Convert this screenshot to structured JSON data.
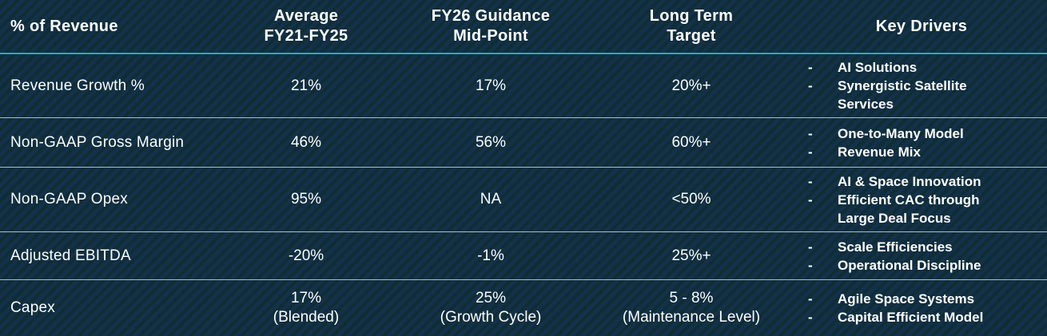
{
  "bullet": "-",
  "colors": {
    "background_stripe_blue": "#14304a",
    "background_stripe_teal": "#0e2e34",
    "header_rule": "#1fadc3",
    "row_rule": "#cdd3d4",
    "text": "#ffffff"
  },
  "header": {
    "col1": "% of Revenue",
    "col2": [
      "Average",
      "FY21-FY25"
    ],
    "col3": [
      "FY26 Guidance",
      "Mid-Point"
    ],
    "col4": [
      "Long Term",
      "Target"
    ],
    "col5": "Key Drivers"
  },
  "rows": [
    {
      "metric": "Revenue Growth %",
      "average": "21%",
      "fy26": "17%",
      "long_term": "20%+",
      "drivers": [
        "AI Solutions",
        "Synergistic Satellite Services"
      ]
    },
    {
      "metric": "Non-GAAP Gross Margin",
      "average": "46%",
      "fy26": "56%",
      "long_term": "60%+",
      "drivers": [
        "One-to-Many Model",
        "Revenue Mix"
      ]
    },
    {
      "metric": "Non-GAAP Opex",
      "average": "95%",
      "fy26": "NA",
      "long_term": "<50%",
      "drivers": [
        "AI & Space Innovation",
        "Efficient CAC through Large Deal Focus"
      ]
    },
    {
      "metric": "Adjusted EBITDA",
      "average": "-20%",
      "fy26": "-1%",
      "long_term": "25%+",
      "drivers": [
        "Scale Efficiencies",
        "Operational Discipline"
      ]
    },
    {
      "metric": "Capex",
      "average": "17%",
      "average_note": "(Blended)",
      "fy26": "25%",
      "fy26_note": "(Growth Cycle)",
      "long_term": "5 - 8%",
      "long_term_note": "(Maintenance Level)",
      "drivers": [
        "Agile Space Systems",
        "Capital Efficient Model"
      ]
    }
  ],
  "chart_data": {
    "type": "table",
    "columns": [
      "% of Revenue",
      "Average FY21-FY25",
      "FY26 Guidance Mid-Point",
      "Long Term Target",
      "Key Drivers"
    ],
    "rows": [
      [
        "Revenue Growth %",
        "21%",
        "17%",
        "20%+",
        "AI Solutions; Synergistic Satellite Services"
      ],
      [
        "Non-GAAP Gross Margin",
        "46%",
        "56%",
        "60%+",
        "One-to-Many Model; Revenue Mix"
      ],
      [
        "Non-GAAP Opex",
        "95%",
        "NA",
        "<50%",
        "AI & Space Innovation; Efficient CAC through Large Deal Focus"
      ],
      [
        "Adjusted EBITDA",
        "-20%",
        "-1%",
        "25%+",
        "Scale Efficiencies; Operational Discipline"
      ],
      [
        "Capex",
        "17% (Blended)",
        "25% (Growth Cycle)",
        "5 - 8% (Maintenance Level)",
        "Agile Space Systems; Capital Efficient Model"
      ]
    ]
  }
}
